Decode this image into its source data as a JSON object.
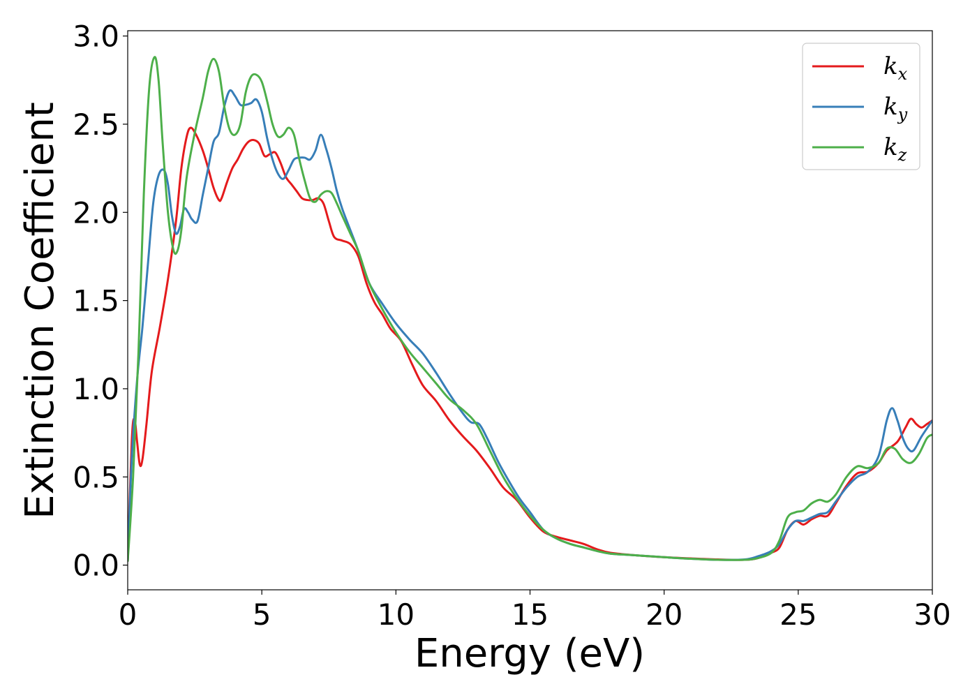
{
  "chart_data": {
    "type": "line",
    "xlabel": "Energy (eV)",
    "ylabel": "Extinction Coefficient",
    "xlim": [
      0,
      30
    ],
    "ylim": [
      -0.14,
      3.03
    ],
    "xticks": [
      0,
      5,
      10,
      15,
      20,
      25,
      30
    ],
    "xtick_labels": [
      "0",
      "5",
      "10",
      "15",
      "20",
      "25",
      "30"
    ],
    "yticks": [
      0.0,
      0.5,
      1.0,
      1.5,
      2.0,
      2.5,
      3.0
    ],
    "ytick_labels": [
      "0.0",
      "0.5",
      "1.0",
      "1.5",
      "2.0",
      "2.5",
      "3.0"
    ],
    "grid": false,
    "legend_position": "top-right",
    "series": [
      {
        "name": "k_x",
        "label_main": "k",
        "label_sub": "x",
        "color": "#e41a1c",
        "points": [
          [
            0,
            0.02
          ],
          [
            0.15,
            0.7
          ],
          [
            0.25,
            0.83
          ],
          [
            0.35,
            0.7
          ],
          [
            0.45,
            0.57
          ],
          [
            0.55,
            0.6
          ],
          [
            0.7,
            0.8
          ],
          [
            0.9,
            1.1
          ],
          [
            1.2,
            1.35
          ],
          [
            1.5,
            1.62
          ],
          [
            1.8,
            1.95
          ],
          [
            2.0,
            2.25
          ],
          [
            2.2,
            2.43
          ],
          [
            2.35,
            2.48
          ],
          [
            2.55,
            2.44
          ],
          [
            2.8,
            2.35
          ],
          [
            3.0,
            2.25
          ],
          [
            3.2,
            2.14
          ],
          [
            3.4,
            2.07
          ],
          [
            3.5,
            2.08
          ],
          [
            3.7,
            2.17
          ],
          [
            3.9,
            2.25
          ],
          [
            4.1,
            2.3
          ],
          [
            4.3,
            2.36
          ],
          [
            4.5,
            2.4
          ],
          [
            4.7,
            2.41
          ],
          [
            4.9,
            2.39
          ],
          [
            5.1,
            2.32
          ],
          [
            5.3,
            2.33
          ],
          [
            5.5,
            2.34
          ],
          [
            5.7,
            2.28
          ],
          [
            5.9,
            2.2
          ],
          [
            6.1,
            2.16
          ],
          [
            6.3,
            2.12
          ],
          [
            6.5,
            2.08
          ],
          [
            6.7,
            2.07
          ],
          [
            6.9,
            2.07
          ],
          [
            7.1,
            2.08
          ],
          [
            7.3,
            2.05
          ],
          [
            7.5,
            1.95
          ],
          [
            7.7,
            1.86
          ],
          [
            8.0,
            1.84
          ],
          [
            8.3,
            1.82
          ],
          [
            8.6,
            1.75
          ],
          [
            8.9,
            1.6
          ],
          [
            9.2,
            1.49
          ],
          [
            9.5,
            1.42
          ],
          [
            9.8,
            1.34
          ],
          [
            10.2,
            1.27
          ],
          [
            10.6,
            1.14
          ],
          [
            11.0,
            1.02
          ],
          [
            11.5,
            0.93
          ],
          [
            12.0,
            0.82
          ],
          [
            12.5,
            0.73
          ],
          [
            13.0,
            0.65
          ],
          [
            13.5,
            0.55
          ],
          [
            14.0,
            0.44
          ],
          [
            14.5,
            0.37
          ],
          [
            15.0,
            0.27
          ],
          [
            15.5,
            0.19
          ],
          [
            16.0,
            0.16
          ],
          [
            16.5,
            0.14
          ],
          [
            17.0,
            0.12
          ],
          [
            17.5,
            0.09
          ],
          [
            18.0,
            0.07
          ],
          [
            19.0,
            0.055
          ],
          [
            20.0,
            0.045
          ],
          [
            21.0,
            0.038
          ],
          [
            22.0,
            0.032
          ],
          [
            23.0,
            0.03
          ],
          [
            23.5,
            0.04
          ],
          [
            24.0,
            0.07
          ],
          [
            24.3,
            0.1
          ],
          [
            24.6,
            0.2
          ],
          [
            24.9,
            0.25
          ],
          [
            25.2,
            0.23
          ],
          [
            25.5,
            0.26
          ],
          [
            25.8,
            0.28
          ],
          [
            26.1,
            0.28
          ],
          [
            26.4,
            0.35
          ],
          [
            26.8,
            0.45
          ],
          [
            27.2,
            0.52
          ],
          [
            27.6,
            0.53
          ],
          [
            28.0,
            0.58
          ],
          [
            28.3,
            0.65
          ],
          [
            28.7,
            0.7
          ],
          [
            29.0,
            0.78
          ],
          [
            29.2,
            0.83
          ],
          [
            29.4,
            0.8
          ],
          [
            29.6,
            0.78
          ],
          [
            29.8,
            0.8
          ],
          [
            30.0,
            0.82
          ]
        ]
      },
      {
        "name": "k_y",
        "label_main": "k",
        "label_sub": "y",
        "color": "#377eb8",
        "points": [
          [
            0,
            0.02
          ],
          [
            0.15,
            0.6
          ],
          [
            0.35,
            1.05
          ],
          [
            0.55,
            1.35
          ],
          [
            0.75,
            1.7
          ],
          [
            0.95,
            2.05
          ],
          [
            1.15,
            2.21
          ],
          [
            1.35,
            2.24
          ],
          [
            1.5,
            2.16
          ],
          [
            1.65,
            1.98
          ],
          [
            1.8,
            1.88
          ],
          [
            1.95,
            1.92
          ],
          [
            2.1,
            2.02
          ],
          [
            2.25,
            2.0
          ],
          [
            2.4,
            1.96
          ],
          [
            2.6,
            1.95
          ],
          [
            2.8,
            2.1
          ],
          [
            3.0,
            2.25
          ],
          [
            3.2,
            2.4
          ],
          [
            3.4,
            2.45
          ],
          [
            3.6,
            2.6
          ],
          [
            3.8,
            2.69
          ],
          [
            4.0,
            2.66
          ],
          [
            4.2,
            2.61
          ],
          [
            4.4,
            2.61
          ],
          [
            4.6,
            2.62
          ],
          [
            4.8,
            2.64
          ],
          [
            5.0,
            2.57
          ],
          [
            5.2,
            2.42
          ],
          [
            5.4,
            2.3
          ],
          [
            5.6,
            2.22
          ],
          [
            5.8,
            2.19
          ],
          [
            6.0,
            2.24
          ],
          [
            6.2,
            2.3
          ],
          [
            6.4,
            2.31
          ],
          [
            6.6,
            2.31
          ],
          [
            6.8,
            2.3
          ],
          [
            7.0,
            2.35
          ],
          [
            7.2,
            2.44
          ],
          [
            7.4,
            2.36
          ],
          [
            7.6,
            2.25
          ],
          [
            7.8,
            2.12
          ],
          [
            8.0,
            2.02
          ],
          [
            8.3,
            1.9
          ],
          [
            8.6,
            1.78
          ],
          [
            9.0,
            1.6
          ],
          [
            9.5,
            1.48
          ],
          [
            10.0,
            1.37
          ],
          [
            10.5,
            1.28
          ],
          [
            11.0,
            1.2
          ],
          [
            11.5,
            1.09
          ],
          [
            12.0,
            0.97
          ],
          [
            12.5,
            0.86
          ],
          [
            12.8,
            0.81
          ],
          [
            13.1,
            0.8
          ],
          [
            13.4,
            0.72
          ],
          [
            13.8,
            0.59
          ],
          [
            14.2,
            0.48
          ],
          [
            14.6,
            0.38
          ],
          [
            15.0,
            0.3
          ],
          [
            15.5,
            0.2
          ],
          [
            16.0,
            0.15
          ],
          [
            16.5,
            0.12
          ],
          [
            17.0,
            0.1
          ],
          [
            17.5,
            0.08
          ],
          [
            18.0,
            0.065
          ],
          [
            19.0,
            0.055
          ],
          [
            20.0,
            0.045
          ],
          [
            21.0,
            0.036
          ],
          [
            22.0,
            0.03
          ],
          [
            23.0,
            0.032
          ],
          [
            23.5,
            0.05
          ],
          [
            24.0,
            0.08
          ],
          [
            24.3,
            0.12
          ],
          [
            24.6,
            0.2
          ],
          [
            24.9,
            0.25
          ],
          [
            25.2,
            0.25
          ],
          [
            25.5,
            0.27
          ],
          [
            25.8,
            0.29
          ],
          [
            26.1,
            0.3
          ],
          [
            26.4,
            0.36
          ],
          [
            26.8,
            0.44
          ],
          [
            27.2,
            0.5
          ],
          [
            27.6,
            0.53
          ],
          [
            28.0,
            0.62
          ],
          [
            28.3,
            0.82
          ],
          [
            28.5,
            0.89
          ],
          [
            28.7,
            0.82
          ],
          [
            28.9,
            0.72
          ],
          [
            29.1,
            0.66
          ],
          [
            29.3,
            0.65
          ],
          [
            29.6,
            0.73
          ],
          [
            30.0,
            0.82
          ]
        ]
      },
      {
        "name": "k_z",
        "label_main": "k",
        "label_sub": "z",
        "color": "#4daf4a",
        "points": [
          [
            0,
            0.02
          ],
          [
            0.2,
            0.5
          ],
          [
            0.4,
            1.2
          ],
          [
            0.6,
            2.1
          ],
          [
            0.8,
            2.7
          ],
          [
            1.0,
            2.88
          ],
          [
            1.15,
            2.75
          ],
          [
            1.3,
            2.4
          ],
          [
            1.5,
            2.0
          ],
          [
            1.7,
            1.79
          ],
          [
            1.85,
            1.78
          ],
          [
            2.0,
            1.9
          ],
          [
            2.2,
            2.2
          ],
          [
            2.5,
            2.45
          ],
          [
            2.8,
            2.65
          ],
          [
            3.0,
            2.8
          ],
          [
            3.2,
            2.87
          ],
          [
            3.4,
            2.8
          ],
          [
            3.6,
            2.6
          ],
          [
            3.8,
            2.47
          ],
          [
            4.0,
            2.44
          ],
          [
            4.2,
            2.5
          ],
          [
            4.4,
            2.68
          ],
          [
            4.6,
            2.77
          ],
          [
            4.8,
            2.78
          ],
          [
            5.0,
            2.74
          ],
          [
            5.2,
            2.63
          ],
          [
            5.4,
            2.5
          ],
          [
            5.6,
            2.43
          ],
          [
            5.8,
            2.44
          ],
          [
            6.0,
            2.48
          ],
          [
            6.2,
            2.44
          ],
          [
            6.4,
            2.3
          ],
          [
            6.6,
            2.18
          ],
          [
            6.8,
            2.08
          ],
          [
            7.0,
            2.06
          ],
          [
            7.2,
            2.1
          ],
          [
            7.4,
            2.12
          ],
          [
            7.6,
            2.11
          ],
          [
            7.8,
            2.05
          ],
          [
            8.0,
            1.98
          ],
          [
            8.3,
            1.88
          ],
          [
            8.6,
            1.78
          ],
          [
            9.0,
            1.6
          ],
          [
            9.5,
            1.45
          ],
          [
            10.0,
            1.32
          ],
          [
            10.5,
            1.21
          ],
          [
            11.0,
            1.12
          ],
          [
            11.5,
            1.03
          ],
          [
            12.0,
            0.94
          ],
          [
            12.5,
            0.88
          ],
          [
            13.0,
            0.8
          ],
          [
            13.5,
            0.65
          ],
          [
            14.0,
            0.5
          ],
          [
            14.5,
            0.38
          ],
          [
            15.0,
            0.28
          ],
          [
            15.5,
            0.2
          ],
          [
            16.0,
            0.15
          ],
          [
            16.5,
            0.12
          ],
          [
            17.0,
            0.1
          ],
          [
            17.5,
            0.08
          ],
          [
            18.0,
            0.065
          ],
          [
            19.0,
            0.055
          ],
          [
            20.0,
            0.045
          ],
          [
            21.0,
            0.036
          ],
          [
            22.0,
            0.03
          ],
          [
            23.0,
            0.03
          ],
          [
            23.5,
            0.04
          ],
          [
            24.0,
            0.07
          ],
          [
            24.3,
            0.14
          ],
          [
            24.6,
            0.27
          ],
          [
            24.9,
            0.3
          ],
          [
            25.2,
            0.31
          ],
          [
            25.5,
            0.35
          ],
          [
            25.8,
            0.37
          ],
          [
            26.1,
            0.36
          ],
          [
            26.4,
            0.4
          ],
          [
            26.8,
            0.5
          ],
          [
            27.2,
            0.56
          ],
          [
            27.6,
            0.55
          ],
          [
            28.0,
            0.58
          ],
          [
            28.3,
            0.66
          ],
          [
            28.6,
            0.66
          ],
          [
            28.9,
            0.6
          ],
          [
            29.2,
            0.58
          ],
          [
            29.5,
            0.63
          ],
          [
            29.8,
            0.72
          ],
          [
            30.0,
            0.74
          ]
        ]
      }
    ]
  }
}
